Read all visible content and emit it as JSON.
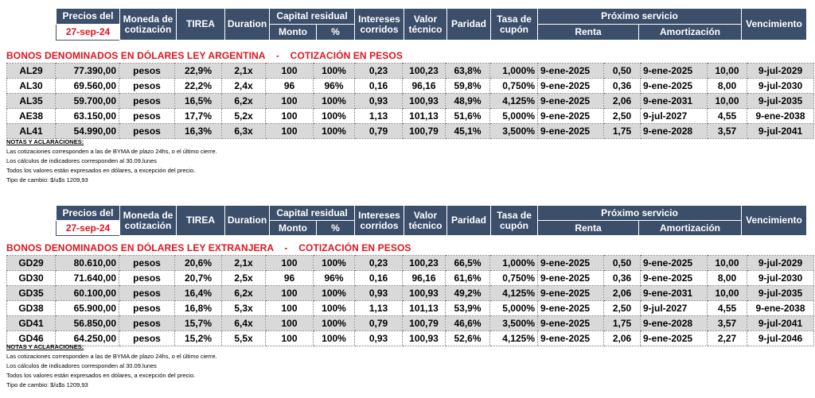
{
  "header": {
    "precios_del": "Precios del",
    "date": "27-sep-24",
    "moneda_line1": "Moneda de",
    "moneda_line2": "cotización",
    "tirea": "TIREA",
    "duration": "Duration",
    "capital_residual": "Capital residual",
    "monto": "Monto",
    "pct": "%",
    "intereses_line1": "Intereses",
    "intereses_line2": "corridos",
    "valor_line1": "Valor",
    "valor_line2": "técnico",
    "paridad": "Paridad",
    "tasa_line1": "Tasa de",
    "tasa_line2": "cupón",
    "proximo_servicio": "Próximo servicio",
    "renta": "Renta",
    "amortizacion": "Amortización",
    "vencimiento": "Vencimiento"
  },
  "sections": [
    {
      "title": "BONOS DENOMINADOS EN DÓLARES LEY ARGENTINA    -    COTIZACIÓN EN PESOS",
      "rows": [
        [
          "AL29",
          "77.390,00",
          "pesos",
          "22,9%",
          "2,1x",
          "100",
          "100%",
          "0,23",
          "100,23",
          "63,8%",
          "1,000%",
          "9-ene-2025",
          "0,50",
          "9-ene-2025",
          "10,00",
          "9-jul-2029"
        ],
        [
          "AL30",
          "69.560,00",
          "pesos",
          "22,2%",
          "2,4x",
          "96",
          "96%",
          "0,16",
          "96,16",
          "59,8%",
          "0,750%",
          "9-ene-2025",
          "0,36",
          "9-ene-2025",
          "8,00",
          "9-jul-2030"
        ],
        [
          "AL35",
          "59.700,00",
          "pesos",
          "16,5%",
          "6,2x",
          "100",
          "100%",
          "0,93",
          "100,93",
          "48,9%",
          "4,125%",
          "9-ene-2025",
          "2,06",
          "9-ene-2031",
          "10,00",
          "9-jul-2035"
        ],
        [
          "AE38",
          "63.150,00",
          "pesos",
          "17,7%",
          "5,2x",
          "100",
          "100%",
          "1,13",
          "101,13",
          "51,6%",
          "5,000%",
          "9-ene-2025",
          "2,50",
          "9-jul-2027",
          "4,55",
          "9-ene-2038"
        ],
        [
          "AL41",
          "54.990,00",
          "pesos",
          "16,3%",
          "6,3x",
          "100",
          "100%",
          "0,79",
          "100,79",
          "45,1%",
          "3,500%",
          "9-ene-2025",
          "1,75",
          "9-ene-2028",
          "3,57",
          "9-jul-2041"
        ]
      ]
    },
    {
      "title": "BONOS DENOMINADOS EN DÓLARES LEY EXTRANJERA    -    COTIZACIÓN EN PESOS",
      "rows": [
        [
          "GD29",
          "80.610,00",
          "pesos",
          "20,6%",
          "2,1x",
          "100",
          "100%",
          "0,23",
          "100,23",
          "66,5%",
          "1,000%",
          "9-ene-2025",
          "0,50",
          "9-ene-2025",
          "10,00",
          "9-jul-2029"
        ],
        [
          "GD30",
          "71.640,00",
          "pesos",
          "20,7%",
          "2,5x",
          "96",
          "96%",
          "0,16",
          "96,16",
          "61,6%",
          "0,750%",
          "9-ene-2025",
          "0,36",
          "9-ene-2025",
          "8,00",
          "9-jul-2030"
        ],
        [
          "GD35",
          "60.100,00",
          "pesos",
          "16,4%",
          "6,2x",
          "100",
          "100%",
          "0,93",
          "100,93",
          "49,2%",
          "4,125%",
          "9-ene-2025",
          "2,06",
          "9-ene-2031",
          "10,00",
          "9-jul-2035"
        ],
        [
          "GD38",
          "65.900,00",
          "pesos",
          "16,8%",
          "5,3x",
          "100",
          "100%",
          "1,13",
          "101,13",
          "53,9%",
          "5,000%",
          "9-ene-2025",
          "2,50",
          "9-jul-2027",
          "4,55",
          "9-ene-2038"
        ],
        [
          "GD41",
          "56.850,00",
          "pesos",
          "15,7%",
          "6,4x",
          "100",
          "100%",
          "0,79",
          "100,79",
          "46,6%",
          "3,500%",
          "9-ene-2025",
          "1,75",
          "9-ene-2028",
          "3,57",
          "9-jul-2041"
        ],
        [
          "GD46",
          "64.250,00",
          "pesos",
          "15,2%",
          "5,5x",
          "100",
          "100%",
          "0,93",
          "100,93",
          "52,6%",
          "4,125%",
          "9-ene-2025",
          "2,06",
          "9-ene-2025",
          "2,27",
          "9-jul-2046"
        ]
      ]
    }
  ],
  "notes": {
    "title": "NOTAS Y ACLARACIONES:",
    "lines": [
      "Las cotizaciones corresponden a las de BYMA de plazo 24hs, o el último cierre.",
      "Los cálculos de indicadores corresponden al 30.09.lunes",
      "Todos los valores están expresados en dólares, a excepción del precio.",
      "Tipo de cambio: $/u$s 1209,93"
    ]
  },
  "colors": {
    "header_bg": "#3b4f6b",
    "title_red": "#e0141e",
    "row_shaded": "#d9d9d9"
  }
}
